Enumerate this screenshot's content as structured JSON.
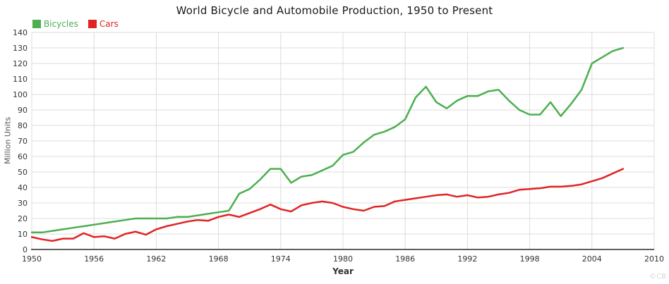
{
  "chart_data": {
    "type": "line",
    "title": "World Bicycle and Automobile Production, 1950 to Present",
    "xlabel": "Year",
    "ylabel": "Million Units",
    "x": [
      1950,
      1951,
      1952,
      1953,
      1954,
      1955,
      1956,
      1957,
      1958,
      1959,
      1960,
      1961,
      1962,
      1963,
      1964,
      1965,
      1966,
      1967,
      1968,
      1969,
      1970,
      1971,
      1972,
      1973,
      1974,
      1975,
      1976,
      1977,
      1978,
      1979,
      1980,
      1981,
      1982,
      1983,
      1984,
      1985,
      1986,
      1987,
      1988,
      1989,
      1990,
      1991,
      1992,
      1993,
      1994,
      1995,
      1996,
      1997,
      1998,
      1999,
      2000,
      2001,
      2002,
      2003,
      2004,
      2005,
      2006,
      2007
    ],
    "series": [
      {
        "name": "Bicycles",
        "color": "#4caf50",
        "values": [
          11,
          11,
          12,
          13,
          14,
          15,
          16,
          17,
          18,
          19,
          20,
          20,
          20,
          20,
          21,
          21,
          22,
          23,
          24,
          25,
          36,
          39,
          45,
          52,
          52,
          43,
          47,
          48,
          51,
          54,
          61,
          63,
          69,
          74,
          76,
          79,
          84,
          98,
          105,
          95,
          91,
          96,
          99,
          99,
          102,
          103,
          96,
          90,
          87,
          87,
          95,
          86,
          94,
          103,
          120,
          124,
          128,
          130
        ]
      },
      {
        "name": "Cars",
        "color": "#e02424",
        "values": [
          8,
          6.5,
          5.5,
          7,
          7,
          10.5,
          8,
          8.5,
          7,
          10,
          11.5,
          9.5,
          13,
          15,
          16.5,
          18,
          19,
          18.5,
          21,
          22.5,
          21,
          23.5,
          26,
          29,
          26,
          24.5,
          28.5,
          30,
          31,
          30,
          27.5,
          26,
          25,
          27.5,
          28,
          31,
          32,
          33,
          34,
          35,
          35.5,
          34,
          35,
          33.5,
          34,
          35.5,
          36.5,
          38.5,
          39,
          39.5,
          40.5,
          40.5,
          41,
          42,
          44,
          46,
          49,
          52
        ]
      }
    ],
    "xlim": [
      1950,
      2010
    ],
    "ylim": [
      0,
      140
    ],
    "x_ticks": [
      1950,
      1956,
      1962,
      1968,
      1974,
      1980,
      1986,
      1992,
      1998,
      2004,
      2010
    ],
    "y_ticks": [
      0,
      10,
      20,
      30,
      40,
      50,
      60,
      70,
      80,
      90,
      100,
      110,
      120,
      130,
      140
    ],
    "grid": true,
    "legend_position": "top-left"
  },
  "watermark": "©CB",
  "colors": {
    "gridline": "#dcdcdc",
    "axis": "#2a2a2a",
    "tick_text": "#333333",
    "title_text": "#1a1a1a",
    "axis_label_text": "#555555"
  }
}
